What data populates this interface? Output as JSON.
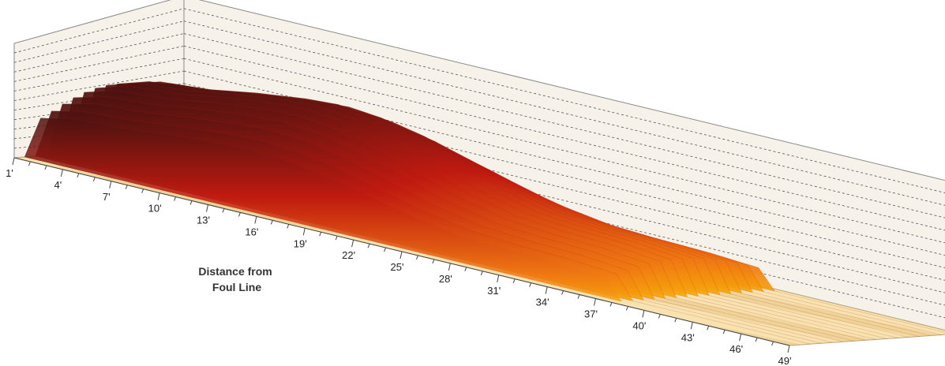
{
  "chart_data": {
    "type": "area",
    "render": "3d-surface",
    "xlabel": "Distance from Foul Line",
    "xlabel_lines": [
      "Distance from",
      "Foul Line"
    ],
    "x_ticks": [
      "1'",
      "4'",
      "7'",
      "10'",
      "13'",
      "16'",
      "19'",
      "22'",
      "25'",
      "28'",
      "31'",
      "34'",
      "37'",
      "40'",
      "43'",
      "46'",
      "49'"
    ],
    "x_unit": "ft",
    "xlim": [
      1,
      49
    ],
    "ylabel": "",
    "oil_pattern_end_ft": 38,
    "grid": true,
    "colors": {
      "floor": "#f7e2b0",
      "floor_stripe": "#efd49a",
      "wall": "#f6f2e9",
      "grid_line": "#555555",
      "low": "#ffe400",
      "mid": "#f07a12",
      "high": "#c01a10",
      "peak": "#4a1210"
    },
    "series": [
      {
        "x": [
          1,
          2,
          4,
          7,
          10,
          13,
          15,
          17,
          19,
          22,
          25,
          28,
          31,
          34,
          37,
          38,
          40,
          43,
          46,
          49
        ],
        "values": [
          0,
          70,
          80,
          84,
          92,
          98,
          100,
          97,
          90,
          74,
          56,
          44,
          40,
          38,
          33,
          0,
          0,
          0,
          0,
          0
        ]
      }
    ]
  }
}
